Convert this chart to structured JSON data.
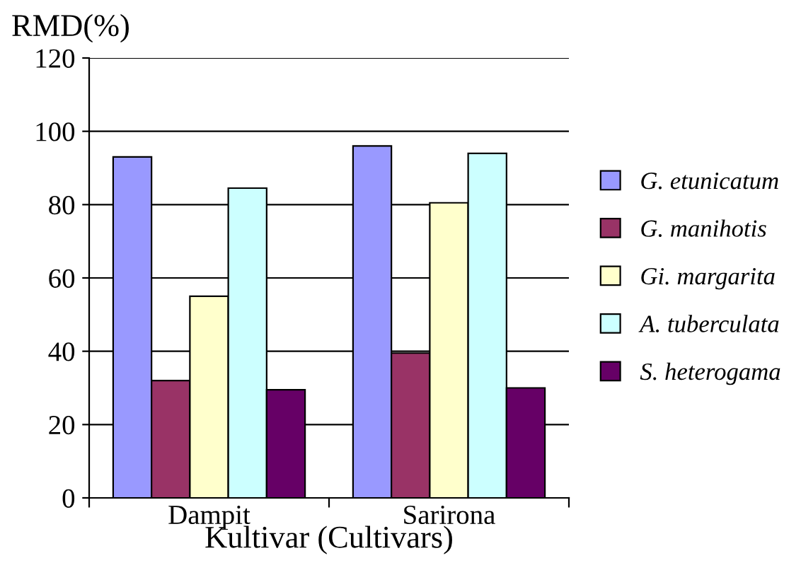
{
  "chart_data": {
    "type": "bar",
    "ylabel": "RMD(%)",
    "xlabel": "Kultivar (Cultivars)",
    "categories": [
      "Dampit",
      "Sarirona"
    ],
    "series": [
      {
        "name": "G. etunicatum",
        "color": "#9999ff",
        "values": [
          93,
          96
        ]
      },
      {
        "name": "G. manihotis",
        "color": "#993366",
        "values": [
          32,
          39.5
        ]
      },
      {
        "name": "Gi. margarita",
        "color": "#ffffcc",
        "values": [
          55,
          80.5
        ]
      },
      {
        "name": "A. tuberculata",
        "color": "#ccffff",
        "values": [
          84.5,
          94
        ]
      },
      {
        "name": "S. heterogama",
        "color": "#660066",
        "values": [
          29.5,
          30
        ]
      }
    ],
    "ylim": [
      0,
      120
    ],
    "yticks": [
      0,
      20,
      40,
      60,
      80,
      100,
      120
    ],
    "grid": "y",
    "legend": "right"
  }
}
